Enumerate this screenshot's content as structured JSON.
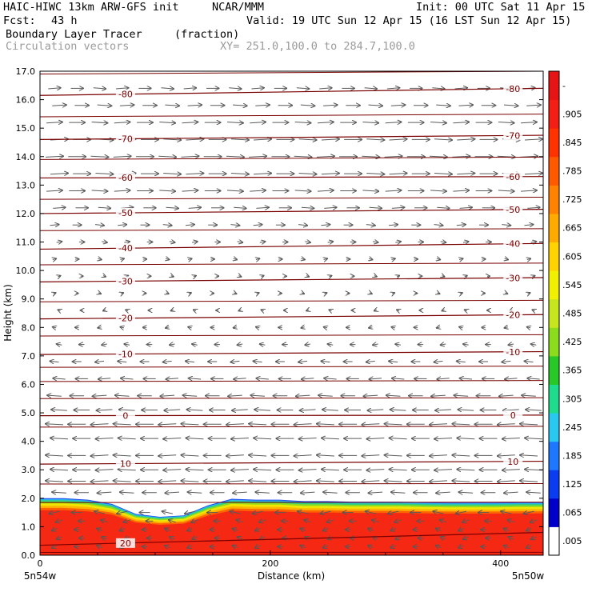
{
  "header": {
    "model": "HAIC-HIWC 13km ARW-GFS init",
    "org": "NCAR/MMM",
    "init": "Init: 00 UTC Sat 11 Apr 15",
    "fcst_label": "Fcst:",
    "fcst_value": "43 h",
    "valid": "Valid: 19 UTC Sun 12 Apr 15 (16 LST Sun 12 Apr 15)",
    "field": "Boundary Layer Tracer",
    "field_units": "(fraction)",
    "overlay": "Circulation vectors",
    "xy": "XY= 251.0,100.0 to 284.7,100.0"
  },
  "chart_data": {
    "type": "heatmap",
    "title": "Boundary Layer Tracer",
    "units": "fraction",
    "xlabel": "Distance (km)",
    "ylabel": "Height (km)",
    "xlim": [
      0,
      437
    ],
    "ylim": [
      0,
      17
    ],
    "x_ticks": [
      0,
      200,
      400
    ],
    "y_ticks": [
      "0.0",
      "1.0",
      "2.0",
      "3.0",
      "4.0",
      "5.0",
      "6.0",
      "7.0",
      "8.0",
      "9.0",
      "10.0",
      "11.0",
      "12.0",
      "13.0",
      "14.0",
      "15.0",
      "16.0",
      "17.0"
    ],
    "x_endpoints": [
      "5n54w",
      "5n50w"
    ],
    "colorbar_labels": [
      ".005",
      ".065",
      ".125",
      ".185",
      ".245",
      ".305",
      ".365",
      ".425",
      ".485",
      ".545",
      ".605",
      ".665",
      ".725",
      ".785",
      ".845",
      ".905",
      "-"
    ],
    "colorbar_colors": [
      "#ffffff",
      "#0000c8",
      "#0a3cf0",
      "#1e78ff",
      "#28c8f0",
      "#1edc8c",
      "#28c828",
      "#8cdc1e",
      "#c8e61e",
      "#f0f000",
      "#ffd200",
      "#ffaa00",
      "#ff8200",
      "#ff5a00",
      "#ff3200",
      "#f51e14",
      "#e61414"
    ],
    "layer_top_km": [
      2.0,
      2.0,
      1.95,
      1.8,
      1.45,
      1.35,
      1.4,
      1.75,
      1.98,
      1.95,
      1.95,
      1.9,
      1.9,
      1.88,
      1.88,
      1.88,
      1.86,
      1.85,
      1.85,
      1.85,
      1.86,
      1.86
    ],
    "temperature_contours": {
      "units": "degC",
      "levels": [
        {
          "value": 20,
          "left_km": 0.35,
          "right_km": 0.8,
          "labels": [
            "20"
          ]
        },
        {
          "value": 10,
          "left_km": 3.2,
          "right_km": 3.3,
          "labels": [
            "10",
            "10"
          ]
        },
        {
          "value": 0,
          "left_km": 4.9,
          "right_km": 4.92,
          "labels": [
            "0",
            "0"
          ]
        },
        {
          "value": -10,
          "left_km": 7.05,
          "right_km": 7.15,
          "labels": [
            "-10",
            "-10"
          ]
        },
        {
          "value": -20,
          "left_km": 8.3,
          "right_km": 8.45,
          "labels": [
            "-20",
            "-20"
          ]
        },
        {
          "value": -30,
          "left_km": 9.6,
          "right_km": 9.75,
          "labels": [
            "-30",
            "-30"
          ]
        },
        {
          "value": -40,
          "left_km": 10.75,
          "right_km": 10.95,
          "labels": [
            "-40",
            "-40"
          ]
        },
        {
          "value": -50,
          "left_km": 12.0,
          "right_km": 12.15,
          "labels": [
            "-50",
            "-50"
          ]
        },
        {
          "value": -60,
          "left_km": 13.25,
          "right_km": 13.3,
          "labels": [
            "-60",
            "-60"
          ]
        },
        {
          "value": -70,
          "left_km": 14.6,
          "right_km": 14.75,
          "labels": [
            "-70",
            "-70"
          ]
        },
        {
          "value": -80,
          "left_km": 16.15,
          "right_km": 16.4,
          "labels": [
            "-80",
            "-80"
          ]
        }
      ],
      "extra_levels_km": [
        0.1,
        1.85,
        2.5,
        4.5,
        5.5,
        6.1,
        6.6,
        7.7,
        8.9,
        10.2,
        11.4,
        12.5,
        13.9,
        15.4,
        16.9
      ]
    },
    "vectors": {
      "rows_km": [
        0.3,
        0.6,
        0.9,
        1.2,
        1.5,
        2.2,
        2.6,
        3.0,
        3.5,
        4.1,
        4.6,
        5.1,
        5.6,
        6.2,
        6.8,
        7.4,
        8.0,
        8.6,
        9.2,
        9.8,
        10.4,
        11.0,
        11.6,
        12.2,
        12.8,
        13.4,
        14.0,
        14.6,
        15.2,
        15.8,
        16.4
      ],
      "u_relative": [
        -0.3,
        -0.3,
        -0.3,
        -0.4,
        -0.6,
        -0.8,
        -1.0,
        -1.0,
        -1.0,
        -1.0,
        -1.0,
        -0.9,
        -0.8,
        -0.7,
        -0.5,
        -0.3,
        -0.2,
        -0.1,
        0.1,
        0.1,
        0.2,
        0.3,
        0.5,
        0.7,
        0.9,
        1.0,
        1.0,
        1.0,
        0.9,
        0.8,
        0.7
      ],
      "columns": 22
    }
  }
}
